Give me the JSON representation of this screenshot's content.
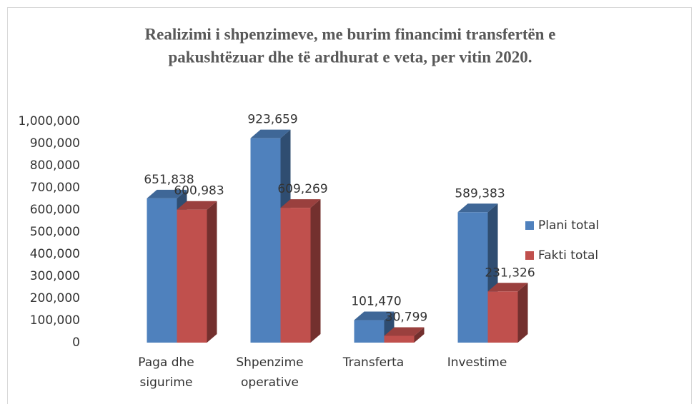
{
  "chart_data": {
    "type": "bar3d",
    "title": [
      "Realizimi i shpenzimeve, me burim financimi transfertën e",
      "pakushtëzuar dhe të ardhurat e veta, per vitin 2020."
    ],
    "categories": [
      [
        "Paga dhe",
        "sigurime"
      ],
      [
        "Shpenzime",
        "operative"
      ],
      [
        "Transferta"
      ],
      [
        "Investime"
      ]
    ],
    "series": [
      {
        "name": "Plani total",
        "color": "#4f81bd",
        "values": [
          651838,
          923659,
          101470,
          589383
        ],
        "value_labels": [
          "651,838",
          "923,659",
          "101,470",
          "589,383"
        ]
      },
      {
        "name": "Fakti total",
        "color": "#c0504d",
        "values": [
          600983,
          609269,
          30799,
          231326
        ],
        "value_labels": [
          "600,983",
          "609,269",
          "30,799",
          "231,326"
        ]
      }
    ],
    "ylim": [
      0,
      1000000
    ],
    "yticks": [
      0,
      {
        "value": 100000,
        "label": "100,000"
      },
      {
        "value": 200000,
        "label": "200,000"
      },
      {
        "value": 300000,
        "label": "300,000"
      },
      {
        "value": 400000,
        "label": "400,000"
      },
      {
        "value": 500000,
        "label": "500,000"
      },
      {
        "value": 600000,
        "label": "600,000"
      },
      {
        "value": 700000,
        "label": "700,000"
      },
      {
        "value": 800000,
        "label": "800,000"
      },
      {
        "value": 900000,
        "label": "900,000"
      },
      {
        "value": 1000000,
        "label": "1,000,000"
      }
    ],
    "legend": "right"
  }
}
